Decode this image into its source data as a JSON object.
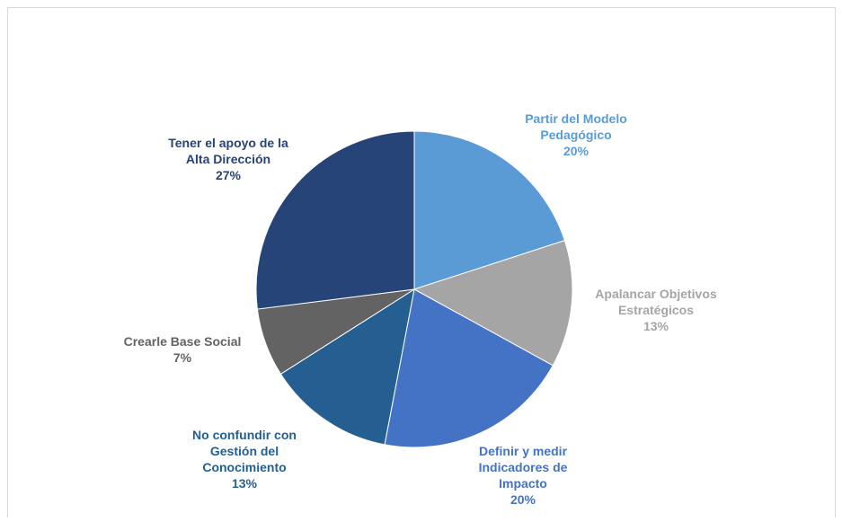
{
  "chart_data": {
    "type": "pie",
    "categories": [
      "Partir del Modelo Pedagógico",
      "Apalancar Objetivos Estratégicos",
      "Definir y medir Indicadores de Impacto",
      "No confundir con Gestión del Conocimiento",
      "Crearle Base Social",
      "Tener el apoyo de la Alta Dirección"
    ],
    "values": [
      20,
      13,
      20,
      13,
      7,
      27
    ],
    "value_labels": [
      "20%",
      "13%",
      "20%",
      "13%",
      "7%",
      "27%"
    ],
    "colors": [
      "#5b9bd5",
      "#a5a5a5",
      "#4472c4",
      "#255e91",
      "#636363",
      "#264478"
    ]
  }
}
